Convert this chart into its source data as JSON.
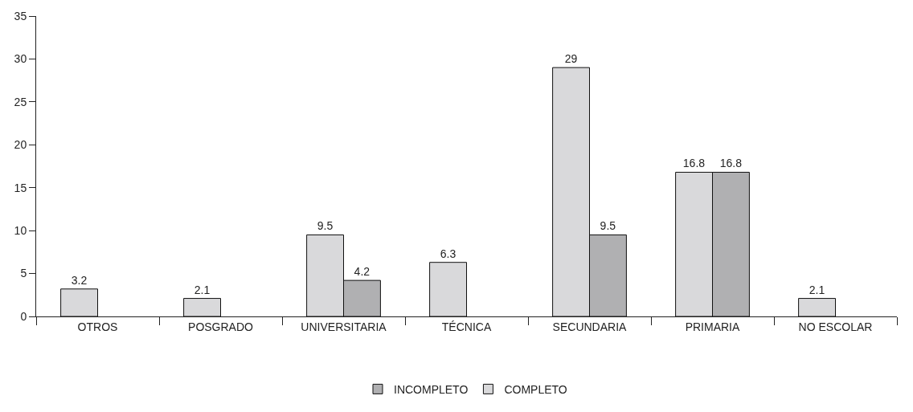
{
  "chart_data": {
    "type": "bar",
    "categories": [
      "OTROS",
      "POSGRADO",
      "UNIVERSITARIA",
      "TÉCNICA",
      "SECUNDARIA",
      "PRIMARIA",
      "NO ESCOLAR"
    ],
    "series": [
      {
        "name": "COMPLETO",
        "color": "#d9d9db",
        "values": [
          3.2,
          2.1,
          9.5,
          6.3,
          29,
          16.8,
          2.1
        ]
      },
      {
        "name": "INCOMPLETO",
        "color": "#b0b0b2",
        "values": [
          null,
          null,
          4.2,
          null,
          9.5,
          16.8,
          null
        ]
      }
    ],
    "ylim": [
      0,
      35
    ],
    "yticks": [
      0,
      5,
      10,
      15,
      20,
      25,
      30,
      35
    ],
    "grid": false,
    "legend": "bottom",
    "data_labels": true
  }
}
